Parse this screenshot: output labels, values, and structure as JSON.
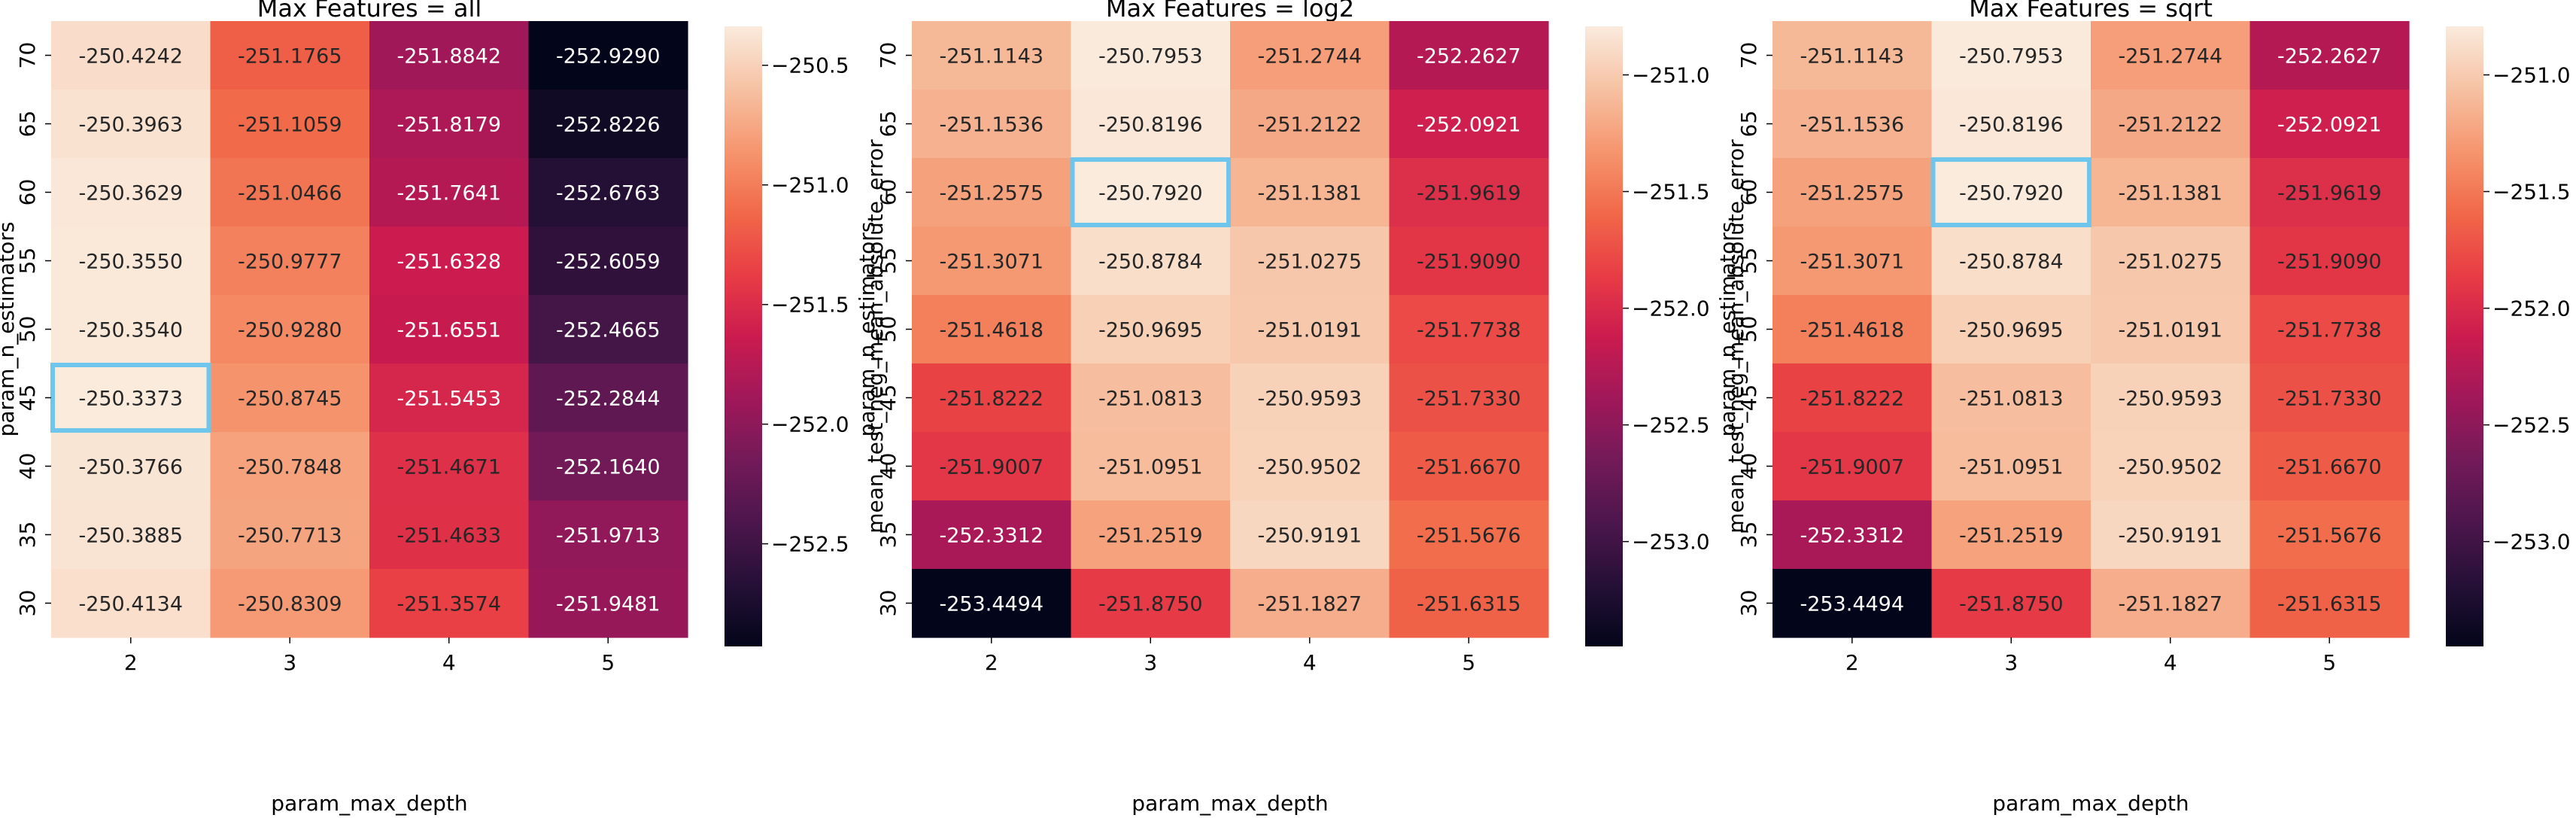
{
  "chart_data": [
    {
      "type": "heatmap",
      "title": "Max Features = all",
      "xlabel": "param_max_depth",
      "ylabel": "param_n_estimators",
      "colorbar_label": "mean_test_neg_mean_absolute_error",
      "x": [
        "2",
        "3",
        "4",
        "5"
      ],
      "y": [
        "70",
        "65",
        "60",
        "55",
        "50",
        "45",
        "40",
        "35",
        "30"
      ],
      "values": [
        [
          "-250.4242",
          "-251.1765",
          "-251.8842",
          "-252.9290"
        ],
        [
          "-250.3963",
          "-251.1059",
          "-251.8179",
          "-252.8226"
        ],
        [
          "-250.3629",
          "-251.0466",
          "-251.7641",
          "-252.6763"
        ],
        [
          "-250.3550",
          "-250.9777",
          "-251.6328",
          "-252.6059"
        ],
        [
          "-250.3540",
          "-250.9280",
          "-251.6551",
          "-252.4665"
        ],
        [
          "-250.3373",
          "-250.8745",
          "-251.5453",
          "-252.2844"
        ],
        [
          "-250.3766",
          "-250.7848",
          "-251.4671",
          "-252.1640"
        ],
        [
          "-250.3885",
          "-250.7713",
          "-251.4633",
          "-251.9713"
        ],
        [
          "-250.4134",
          "-250.8309",
          "-251.3574",
          "-251.9481"
        ]
      ],
      "vmin": -252.929,
      "vmax": -250.3373,
      "colorbar_ticks": [
        "-250.5",
        "-251.0",
        "-251.5",
        "-252.0",
        "-252.5"
      ],
      "highlight": {
        "row": 5,
        "col": 0
      }
    },
    {
      "type": "heatmap",
      "title": "Max Features = log2",
      "xlabel": "param_max_depth",
      "ylabel": "param_n_estimators",
      "colorbar_label": "mean_test_neg_mean_absolute_error",
      "x": [
        "2",
        "3",
        "4",
        "5"
      ],
      "y": [
        "70",
        "65",
        "60",
        "55",
        "50",
        "45",
        "40",
        "35",
        "30"
      ],
      "values": [
        [
          "-251.1143",
          "-250.7953",
          "-251.2744",
          "-252.2627"
        ],
        [
          "-251.1536",
          "-250.8196",
          "-251.2122",
          "-252.0921"
        ],
        [
          "-251.2575",
          "-250.7920",
          "-251.1381",
          "-251.9619"
        ],
        [
          "-251.3071",
          "-250.8784",
          "-251.0275",
          "-251.9090"
        ],
        [
          "-251.4618",
          "-250.9695",
          "-251.0191",
          "-251.7738"
        ],
        [
          "-251.8222",
          "-251.0813",
          "-250.9593",
          "-251.7330"
        ],
        [
          "-251.9007",
          "-251.0951",
          "-250.9502",
          "-251.6670"
        ],
        [
          "-252.3312",
          "-251.2519",
          "-250.9191",
          "-251.5676"
        ],
        [
          "-253.4494",
          "-251.8750",
          "-251.1827",
          "-251.6315"
        ]
      ],
      "vmin": -253.4494,
      "vmax": -250.792,
      "colorbar_ticks": [
        "-251.0",
        "-251.5",
        "-252.0",
        "-252.5",
        "-253.0"
      ],
      "highlight": {
        "row": 2,
        "col": 1
      }
    },
    {
      "type": "heatmap",
      "title": "Max Features = sqrt",
      "xlabel": "param_max_depth",
      "ylabel": "param_n_estimators",
      "colorbar_label": "mean_test_neg_mean_absolute_error",
      "x": [
        "2",
        "3",
        "4",
        "5"
      ],
      "y": [
        "70",
        "65",
        "60",
        "55",
        "50",
        "45",
        "40",
        "35",
        "30"
      ],
      "values": [
        [
          "-251.1143",
          "-250.7953",
          "-251.2744",
          "-252.2627"
        ],
        [
          "-251.1536",
          "-250.8196",
          "-251.2122",
          "-252.0921"
        ],
        [
          "-251.2575",
          "-250.7920",
          "-251.1381",
          "-251.9619"
        ],
        [
          "-251.3071",
          "-250.8784",
          "-251.0275",
          "-251.9090"
        ],
        [
          "-251.4618",
          "-250.9695",
          "-251.0191",
          "-251.7738"
        ],
        [
          "-251.8222",
          "-251.0813",
          "-250.9593",
          "-251.7330"
        ],
        [
          "-251.9007",
          "-251.0951",
          "-250.9502",
          "-251.6670"
        ],
        [
          "-252.3312",
          "-251.2519",
          "-250.9191",
          "-251.5676"
        ],
        [
          "-253.4494",
          "-251.8750",
          "-251.1827",
          "-251.6315"
        ]
      ],
      "vmin": -253.4494,
      "vmax": -250.792,
      "colorbar_ticks": [
        "-251.0",
        "-251.5",
        "-252.0",
        "-252.5",
        "-253.0"
      ],
      "highlight": {
        "row": 2,
        "col": 1
      }
    }
  ],
  "colors": {
    "colormap": "rocket",
    "highlight": "#6ec6ec"
  }
}
